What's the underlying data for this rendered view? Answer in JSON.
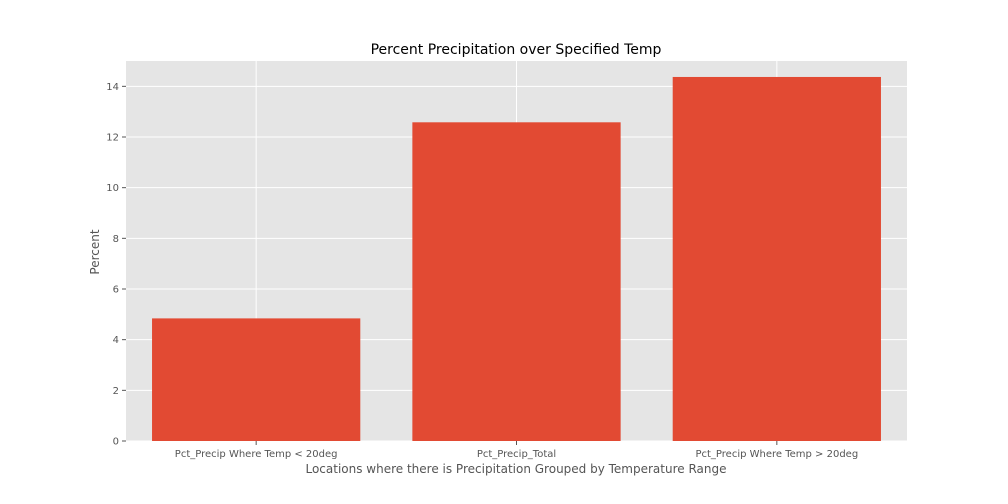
{
  "chart_data": {
    "type": "bar",
    "title": "Percent Precipitation over Specified Temp",
    "xlabel": "Locations where there is Precipitation Grouped by Temperature Range",
    "ylabel": "Percent",
    "categories": [
      "Pct_Precip Where Temp < 20deg",
      "Pct_Precip_Total",
      "Pct_Precip Where Temp > 20deg"
    ],
    "values": [
      4.84,
      12.58,
      14.37
    ],
    "ylim": [
      0,
      15
    ],
    "yticks": [
      0,
      2,
      4,
      6,
      8,
      10,
      12,
      14
    ],
    "grid": true,
    "colors": {
      "bar": "#e24a33",
      "plot_background": "#e5e5e5",
      "grid": "#ffffff"
    }
  }
}
